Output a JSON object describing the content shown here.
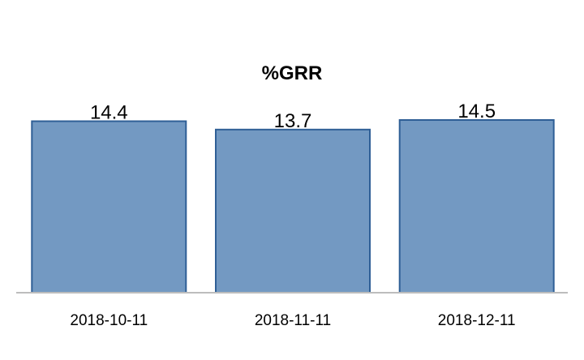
{
  "chart_data": {
    "type": "bar",
    "title": "%GRR",
    "xlabel": "",
    "ylabel": "",
    "categories": [
      "2018-10-11",
      "2018-11-11",
      "2018-12-11"
    ],
    "values": [
      14.4,
      13.7,
      14.5
    ],
    "data_labels": [
      "14.4",
      "13.7",
      "14.5"
    ],
    "ylim": [
      0,
      14.5
    ],
    "grid": false,
    "legend": "none",
    "colors": {
      "bar_fill": "#7399c2",
      "bar_stroke": "#2f5f96",
      "axis": "#bdbdbd"
    }
  }
}
